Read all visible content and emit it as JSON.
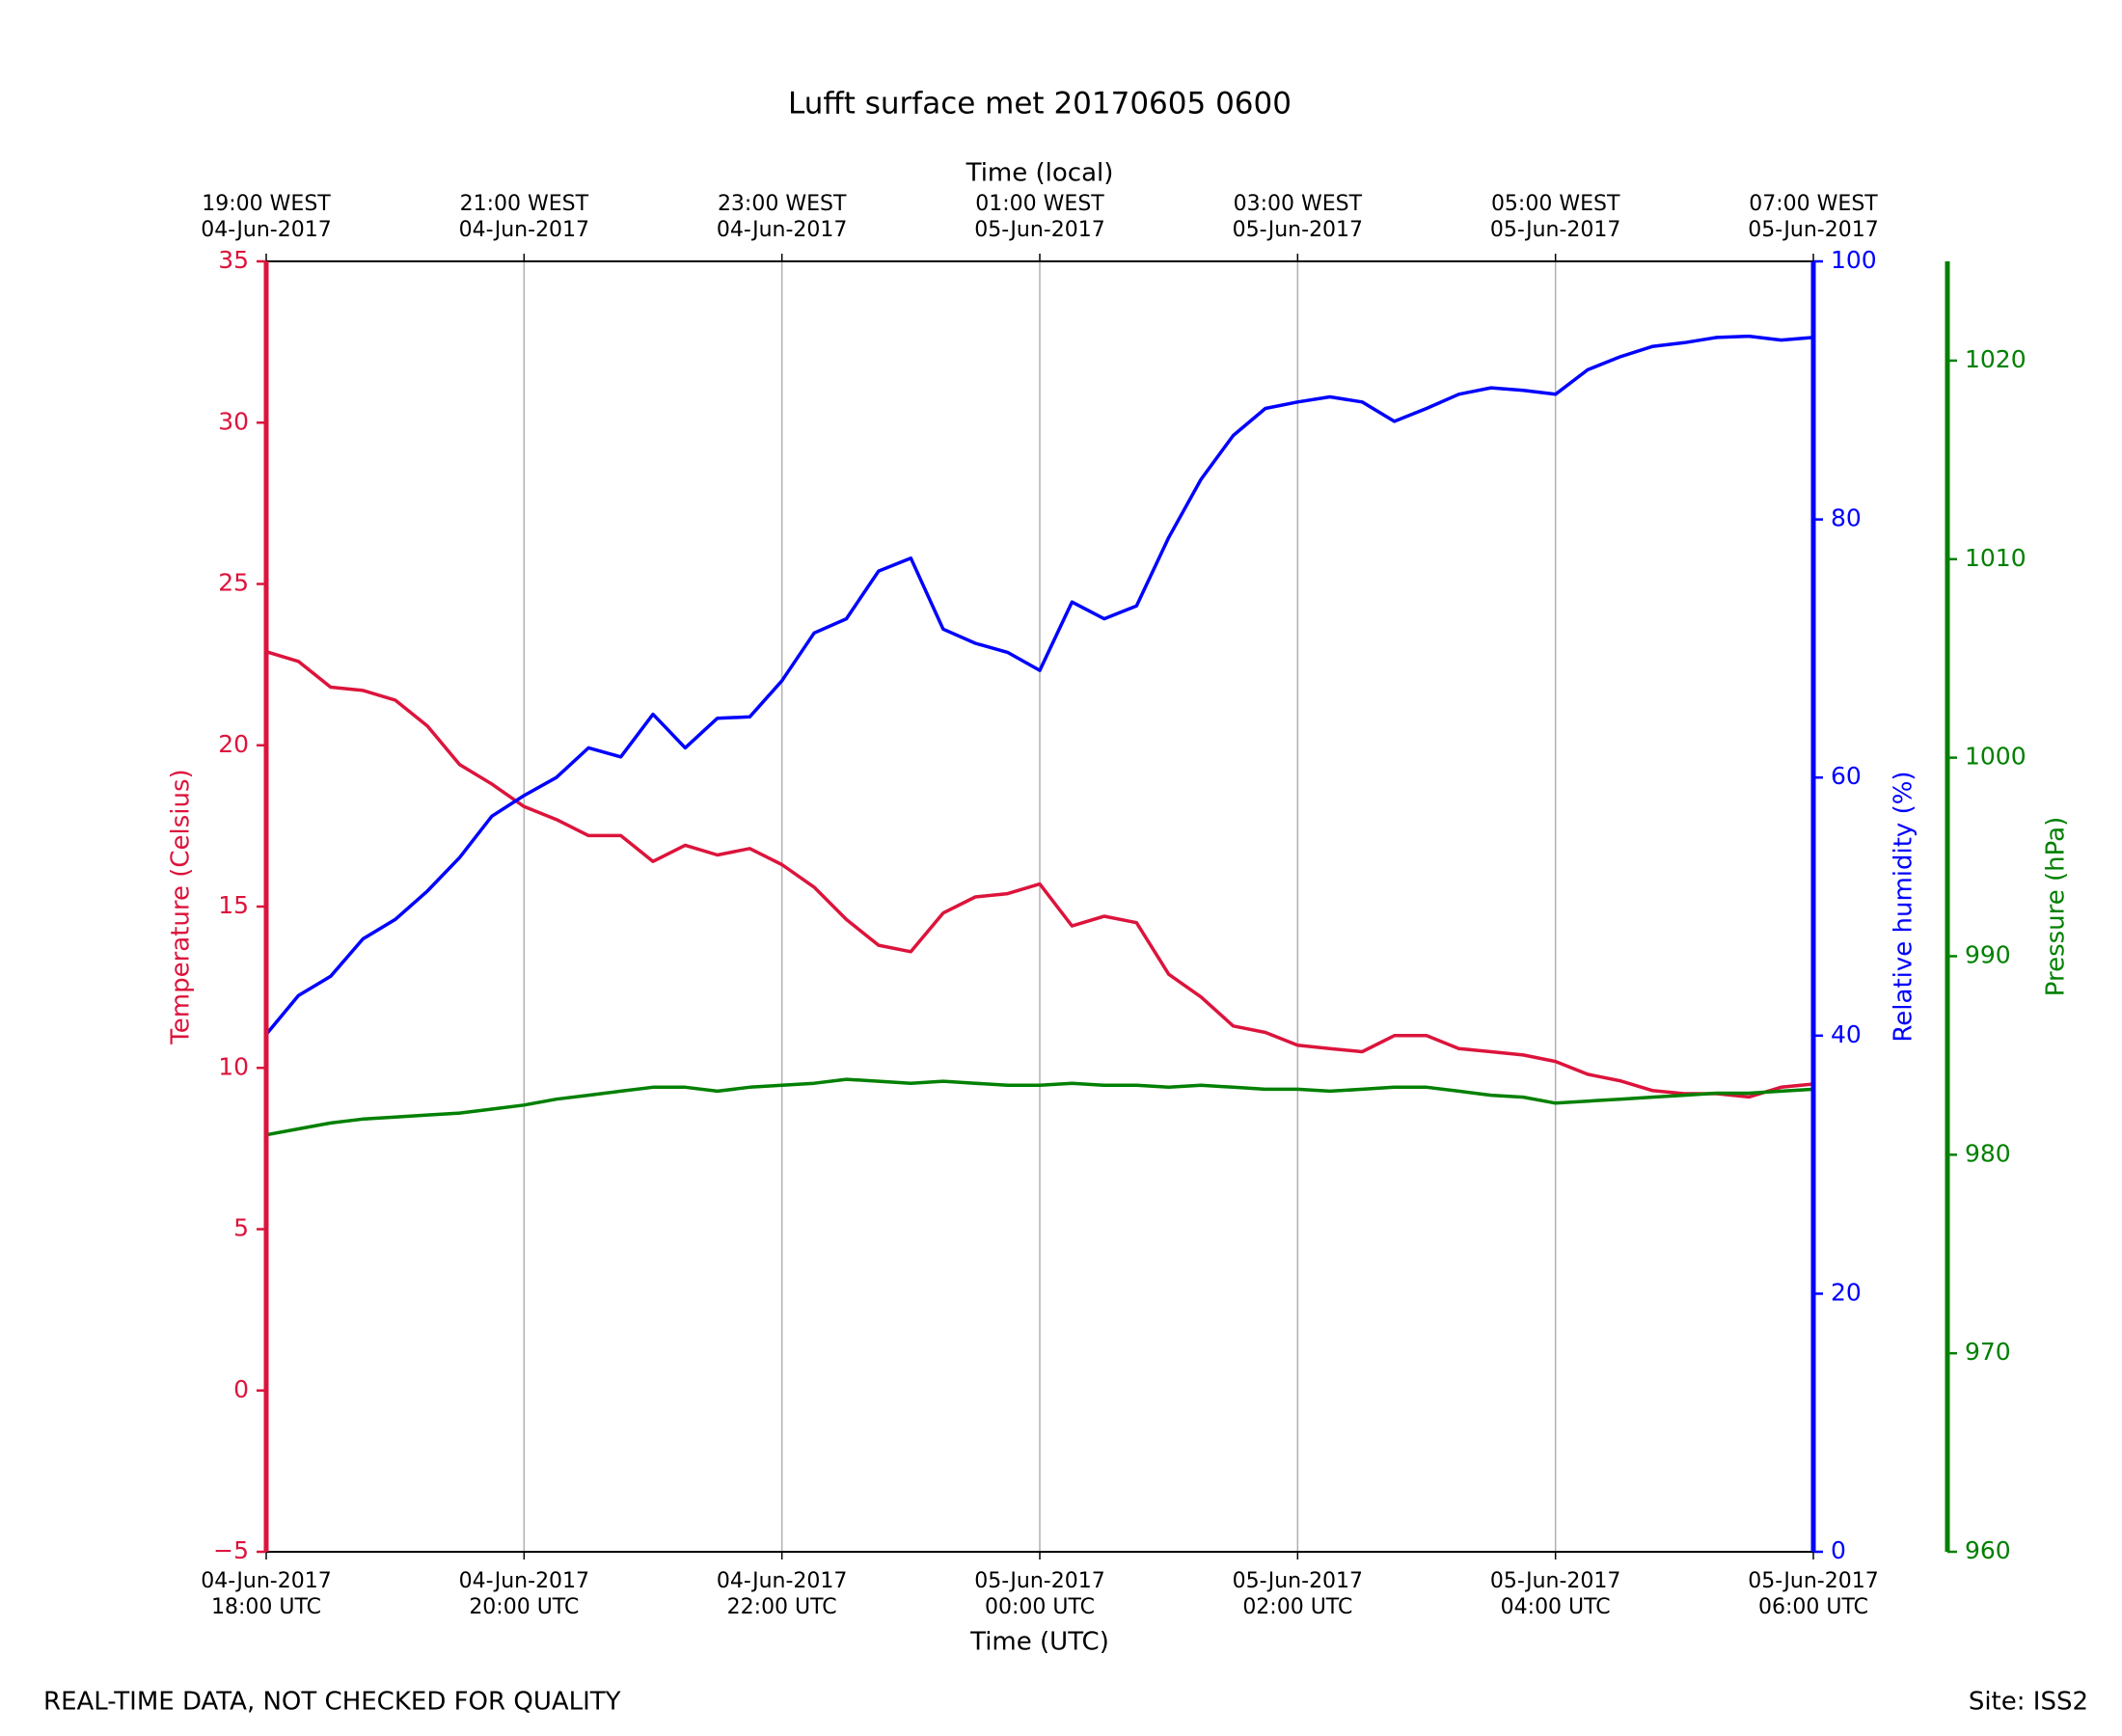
{
  "chart_data": {
    "type": "line",
    "title": "Lufft surface met 20170605 0600",
    "xlabel": "Time (UTC)",
    "x2label": "Time (local)",
    "ylabel": "Temperature (Celsius)",
    "y2label": "Relative humidity (%)",
    "y3label": "Pressure (hPa)",
    "footer_left": "REAL-TIME DATA, NOT CHECKED FOR QUALITY",
    "footer_right": "Site: ISS2",
    "grid": "x",
    "x": [
      "2017-06-04 18:00",
      "2017-06-04 18:15",
      "2017-06-04 18:30",
      "2017-06-04 18:45",
      "2017-06-04 19:00",
      "2017-06-04 19:15",
      "2017-06-04 19:30",
      "2017-06-04 19:45",
      "2017-06-04 20:00",
      "2017-06-04 20:15",
      "2017-06-04 20:30",
      "2017-06-04 20:45",
      "2017-06-04 21:00",
      "2017-06-04 21:15",
      "2017-06-04 21:30",
      "2017-06-04 21:45",
      "2017-06-04 22:00",
      "2017-06-04 22:15",
      "2017-06-04 22:30",
      "2017-06-04 22:45",
      "2017-06-04 23:00",
      "2017-06-04 23:15",
      "2017-06-04 23:30",
      "2017-06-04 23:45",
      "2017-06-05 00:00",
      "2017-06-05 00:15",
      "2017-06-05 00:30",
      "2017-06-05 00:45",
      "2017-06-05 01:00",
      "2017-06-05 01:15",
      "2017-06-05 01:30",
      "2017-06-05 01:45",
      "2017-06-05 02:00",
      "2017-06-05 02:15",
      "2017-06-05 02:30",
      "2017-06-05 02:45",
      "2017-06-05 03:00",
      "2017-06-05 03:15",
      "2017-06-05 03:30",
      "2017-06-05 03:45",
      "2017-06-05 04:00",
      "2017-06-05 04:15",
      "2017-06-05 04:30",
      "2017-06-05 04:45",
      "2017-06-05 05:00",
      "2017-06-05 05:15",
      "2017-06-05 05:30",
      "2017-06-05 05:45",
      "2017-06-05 06:00"
    ],
    "xlim": [
      "2017-06-04 18:00",
      "2017-06-05 06:00"
    ],
    "xticks": [
      {
        "value": "2017-06-04 18:00",
        "label": [
          "04-Jun-2017",
          "18:00 UTC"
        ]
      },
      {
        "value": "2017-06-04 20:00",
        "label": [
          "04-Jun-2017",
          "20:00 UTC"
        ]
      },
      {
        "value": "2017-06-04 22:00",
        "label": [
          "04-Jun-2017",
          "22:00 UTC"
        ]
      },
      {
        "value": "2017-06-05 00:00",
        "label": [
          "05-Jun-2017",
          "00:00 UTC"
        ]
      },
      {
        "value": "2017-06-05 02:00",
        "label": [
          "05-Jun-2017",
          "02:00 UTC"
        ]
      },
      {
        "value": "2017-06-05 04:00",
        "label": [
          "05-Jun-2017",
          "04:00 UTC"
        ]
      },
      {
        "value": "2017-06-05 06:00",
        "label": [
          "05-Jun-2017",
          "06:00 UTC"
        ]
      }
    ],
    "x2ticks": [
      {
        "value": "2017-06-04 18:00",
        "label": [
          "19:00 WEST",
          "04-Jun-2017"
        ]
      },
      {
        "value": "2017-06-04 20:00",
        "label": [
          "21:00 WEST",
          "04-Jun-2017"
        ]
      },
      {
        "value": "2017-06-04 22:00",
        "label": [
          "23:00 WEST",
          "04-Jun-2017"
        ]
      },
      {
        "value": "2017-06-05 00:00",
        "label": [
          "01:00 WEST",
          "05-Jun-2017"
        ]
      },
      {
        "value": "2017-06-05 02:00",
        "label": [
          "03:00 WEST",
          "05-Jun-2017"
        ]
      },
      {
        "value": "2017-06-05 04:00",
        "label": [
          "05:00 WEST",
          "05-Jun-2017"
        ]
      },
      {
        "value": "2017-06-05 06:00",
        "label": [
          "07:00 WEST",
          "05-Jun-2017"
        ]
      }
    ],
    "ylim": [
      -5,
      35
    ],
    "yticks": [
      {
        "value": -5,
        "label": "−5"
      },
      0,
      5,
      10,
      15,
      20,
      25,
      30,
      35
    ],
    "y2lim": [
      0,
      100
    ],
    "y2ticks": [
      0,
      20,
      40,
      60,
      80,
      100
    ],
    "y3lim": [
      960,
      1025
    ],
    "y3ticks": [
      960,
      970,
      980,
      990,
      1000,
      1010,
      1020
    ],
    "series": [
      {
        "name": "Temperature",
        "color": "#dc143c",
        "axis": "y",
        "values": [
          22.9,
          22.6,
          21.8,
          21.7,
          21.4,
          20.6,
          19.4,
          18.8,
          18.1,
          17.7,
          17.2,
          17.2,
          16.4,
          16.9,
          16.6,
          16.8,
          16.3,
          15.6,
          14.6,
          13.8,
          13.6,
          14.8,
          15.3,
          15.4,
          15.7,
          14.4,
          14.7,
          14.5,
          12.9,
          12.2,
          11.3,
          11.1,
          10.7,
          10.6,
          10.5,
          11.0,
          11.0,
          10.6,
          10.5,
          10.4,
          10.2,
          9.8,
          9.6,
          9.3,
          9.2,
          9.2,
          9.1,
          9.4,
          9.5
        ]
      },
      {
        "name": "Relative humidity",
        "color": "#0000ff",
        "axis": "y2",
        "values": [
          40.1,
          43.1,
          44.6,
          47.5,
          49.0,
          51.2,
          53.8,
          57.0,
          58.6,
          60.0,
          62.3,
          61.6,
          64.9,
          62.3,
          64.6,
          64.7,
          67.5,
          71.2,
          72.3,
          76.0,
          77.0,
          71.5,
          70.4,
          69.7,
          68.3,
          73.6,
          72.3,
          73.3,
          78.6,
          83.1,
          86.5,
          88.6,
          89.1,
          89.5,
          89.1,
          87.6,
          88.6,
          89.7,
          90.2,
          90.0,
          89.7,
          91.6,
          92.6,
          93.4,
          93.7,
          94.1,
          94.2,
          93.9,
          94.1
        ]
      },
      {
        "name": "Pressure",
        "color": "#008000",
        "axis": "y3",
        "values": [
          981.0,
          981.3,
          981.6,
          981.8,
          981.9,
          982.0,
          982.1,
          982.3,
          982.5,
          982.8,
          983.0,
          983.2,
          983.4,
          983.4,
          983.2,
          983.4,
          983.5,
          983.6,
          983.8,
          983.7,
          983.6,
          983.7,
          983.6,
          983.5,
          983.5,
          983.6,
          983.5,
          983.5,
          983.4,
          983.5,
          983.4,
          983.3,
          983.3,
          983.2,
          983.3,
          983.4,
          983.4,
          983.2,
          983.0,
          982.9,
          982.6,
          982.7,
          982.8,
          982.9,
          983.0,
          983.1,
          983.1,
          983.2,
          983.3
        ]
      }
    ]
  }
}
